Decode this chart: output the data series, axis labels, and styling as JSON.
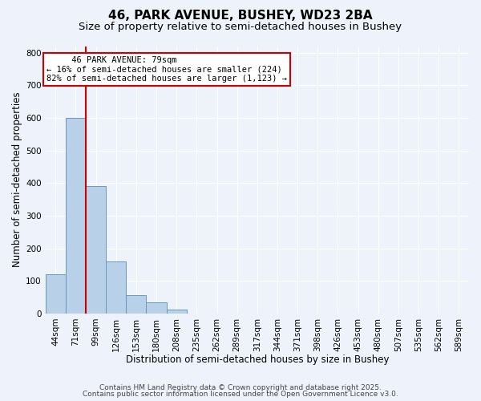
{
  "title_line1": "46, PARK AVENUE, BUSHEY, WD23 2BA",
  "title_line2": "Size of property relative to semi-detached houses in Bushey",
  "xlabel": "Distribution of semi-detached houses by size in Bushey",
  "ylabel": "Number of semi-detached properties",
  "footnote_line1": "Contains HM Land Registry data © Crown copyright and database right 2025.",
  "footnote_line2": "Contains public sector information licensed under the Open Government Licence v3.0.",
  "bar_labels": [
    "44sqm",
    "71sqm",
    "99sqm",
    "126sqm",
    "153sqm",
    "180sqm",
    "208sqm",
    "235sqm",
    "262sqm",
    "289sqm",
    "317sqm",
    "344sqm",
    "371sqm",
    "398sqm",
    "426sqm",
    "453sqm",
    "480sqm",
    "507sqm",
    "535sqm",
    "562sqm",
    "589sqm"
  ],
  "bar_values": [
    120,
    600,
    390,
    160,
    55,
    33,
    13,
    0,
    0,
    0,
    0,
    0,
    0,
    0,
    0,
    0,
    0,
    0,
    0,
    0,
    0
  ],
  "bar_color": "#b8d0e8",
  "bar_edge_color": "#6699bb",
  "marker_bar_index": 1,
  "marker_color": "#cc0000",
  "annotation_title": "46 PARK AVENUE: 79sqm",
  "annotation_line1": "← 16% of semi-detached houses are smaller (224)",
  "annotation_line2": "82% of semi-detached houses are larger (1,123) →",
  "annotation_box_color": "#cc0000",
  "ylim": [
    0,
    820
  ],
  "background_color": "#eef2fa",
  "grid_color": "#ffffff",
  "title_fontsize": 11,
  "subtitle_fontsize": 9.5,
  "axis_label_fontsize": 8.5,
  "tick_fontsize": 7.5,
  "footnote_fontsize": 6.5
}
